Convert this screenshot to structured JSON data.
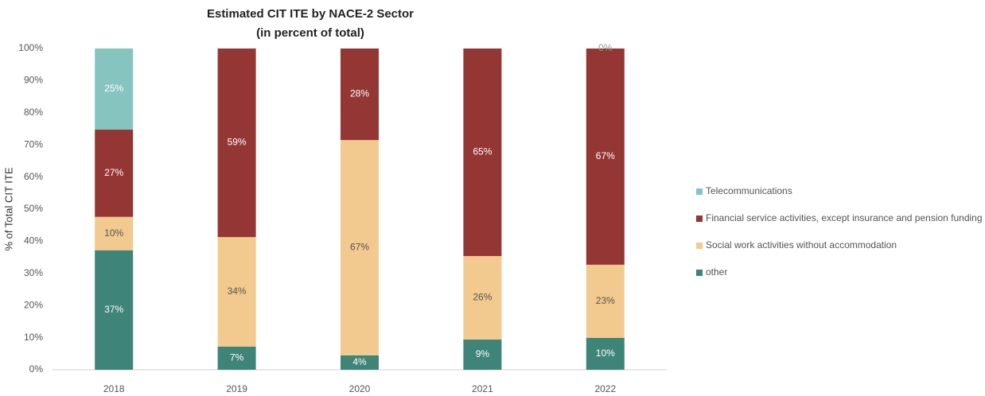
{
  "chart_data": {
    "type": "stacked_bar",
    "title": "Estimated CIT ITE by NACE-2 Sector",
    "subtitle": "(in percent of total)",
    "ylabel": "% of Total CIT ITE",
    "categories": [
      "2018",
      "2019",
      "2020",
      "2021",
      "2022"
    ],
    "series": [
      {
        "name": "other",
        "color": "#3e8478",
        "values": [
          37.2,
          7.2,
          4.5,
          9.4,
          9.9
        ],
        "value_labels": [
          "37%",
          "7%",
          "4%",
          "9%",
          "10%"
        ]
      },
      {
        "name": "Social work activities without accommodation",
        "color": "#f2c98e",
        "values": [
          10.4,
          34.1,
          67,
          26,
          22.8
        ],
        "value_labels": [
          "10%",
          "34%",
          "67%",
          "26%",
          "23%"
        ]
      },
      {
        "name": "Financial service activities, except insurance and pension funding",
        "color": "#943634",
        "values": [
          27.2,
          58.7,
          28.5,
          64.6,
          67.3
        ],
        "value_labels": [
          "27%",
          "59%",
          "28%",
          "65%",
          "67%"
        ]
      },
      {
        "name": "Telecommunications",
        "color": "#86c5bf",
        "values": [
          25.2,
          0,
          0,
          0,
          0
        ],
        "value_labels": [
          "25%",
          null,
          null,
          null,
          "0%"
        ]
      }
    ],
    "ylim": [
      0,
      100
    ],
    "yticks": [
      {
        "value": 0,
        "label": "0%"
      },
      {
        "value": 10,
        "label": "10%"
      },
      {
        "value": 20,
        "label": "20%"
      },
      {
        "value": 30,
        "label": "30%"
      },
      {
        "value": 40,
        "label": "40%"
      },
      {
        "value": 50,
        "label": "50%"
      },
      {
        "value": 60,
        "label": "60%"
      },
      {
        "value": 70,
        "label": "70%"
      },
      {
        "value": 80,
        "label": "80%"
      },
      {
        "value": 90,
        "label": "90%"
      },
      {
        "value": 100,
        "label": "100%"
      }
    ],
    "legend": "right"
  }
}
